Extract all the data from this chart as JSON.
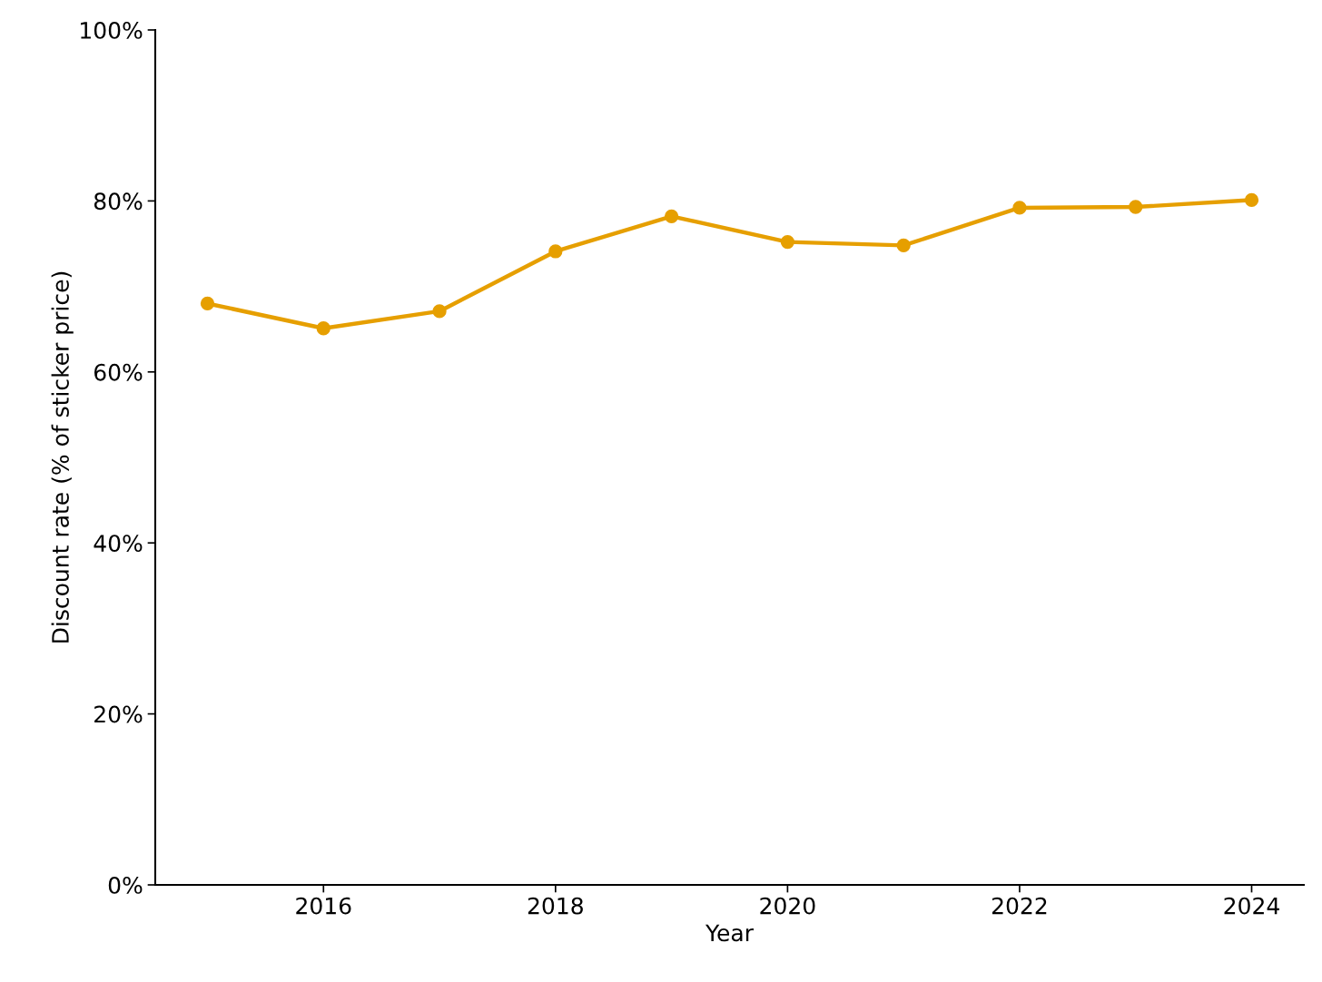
{
  "chart_data": {
    "type": "line",
    "xlabel": "Year",
    "ylabel": "Discount rate (% of sticker price)",
    "x": [
      2015,
      2016,
      2017,
      2018,
      2019,
      2020,
      2021,
      2022,
      2023,
      2024
    ],
    "series": [
      {
        "color": "#e69f00",
        "values": [
          68.0,
          65.1,
          67.1,
          74.1,
          78.2,
          75.2,
          74.8,
          79.2,
          79.3,
          80.1
        ]
      }
    ],
    "xlim": [
      2014.55,
      2024.45
    ],
    "xticks": [
      2016,
      2018,
      2020,
      2022,
      2024
    ],
    "ylim": [
      0,
      100
    ],
    "yticks": [
      {
        "value": 0,
        "label": "0%"
      },
      {
        "value": 20,
        "label": "20%"
      },
      {
        "value": 40,
        "label": "40%"
      },
      {
        "value": 60,
        "label": "60%"
      },
      {
        "value": 80,
        "label": "80%"
      },
      {
        "value": 100,
        "label": "100%"
      }
    ],
    "marker": "circle",
    "line_style": "solid",
    "grid": false,
    "legend": false
  }
}
